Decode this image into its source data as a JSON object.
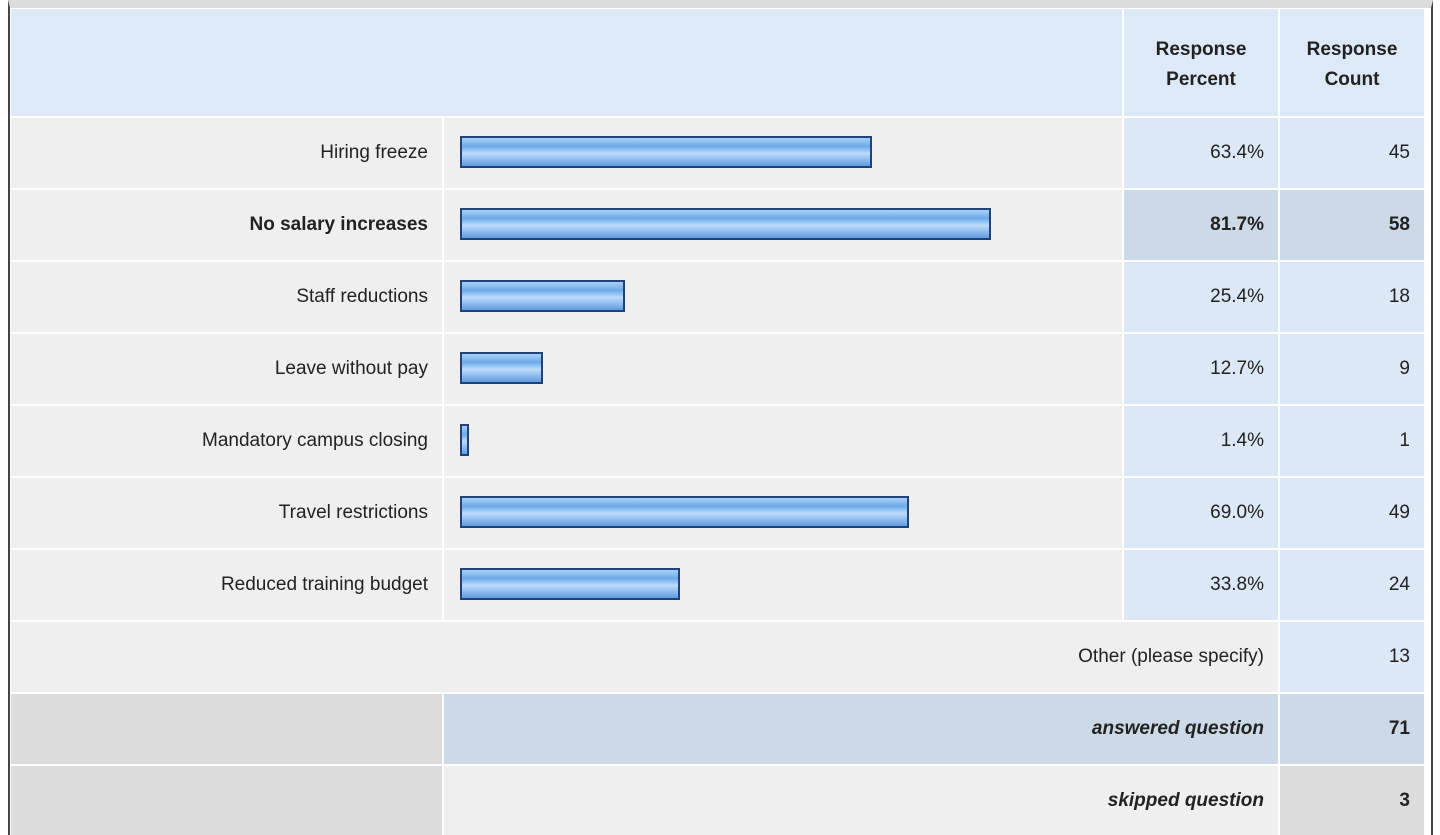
{
  "chart_data": {
    "type": "bar",
    "orientation": "horizontal",
    "headers": [
      "Response Percent",
      "Response Count"
    ],
    "categories": [
      "Hiring freeze",
      "No salary increases",
      "Staff reductions",
      "Leave without pay",
      "Mandatory campus closing",
      "Travel restrictions",
      "Reduced training budget"
    ],
    "values": [
      63.4,
      81.7,
      25.4,
      12.7,
      1.4,
      69.0,
      33.8
    ],
    "value_labels": [
      "63.4%",
      "81.7%",
      "25.4%",
      "12.7%",
      "1.4%",
      "69.0%",
      "33.8%"
    ],
    "counts": [
      45,
      58,
      18,
      9,
      1,
      49,
      24
    ],
    "xlim": [
      0,
      100
    ],
    "highlight": 1,
    "color": "#7fb6ef",
    "other": {
      "label": "Other (please specify)",
      "count": 13
    },
    "answered": {
      "label": "answered question",
      "count": 71
    },
    "skipped": {
      "label": "skipped question",
      "count": 3
    }
  }
}
